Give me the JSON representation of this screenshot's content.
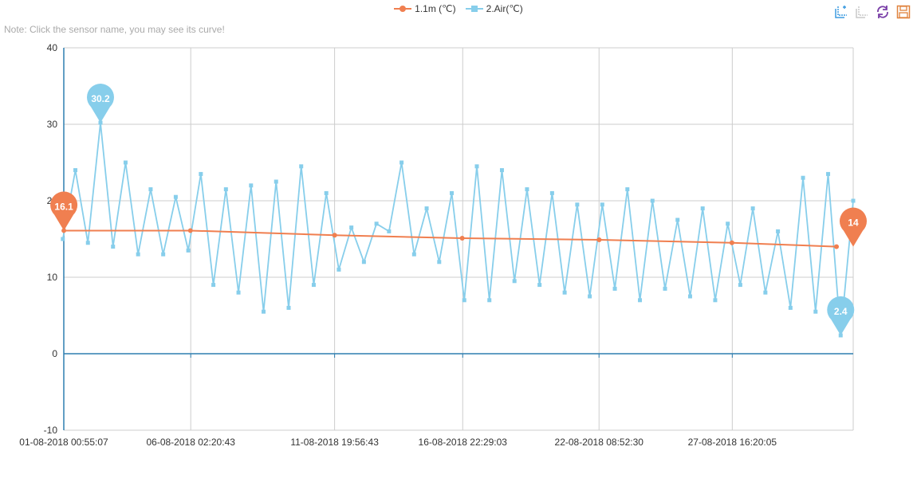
{
  "note": "Note: Click the sensor name, you may see its curve!",
  "toolbox": [
    {
      "name": "zoom-icon",
      "color": "#3d9be0"
    },
    {
      "name": "zoom-reset-icon",
      "color": "#c8c8c8"
    },
    {
      "name": "restore-icon",
      "color": "#7a3fa8"
    },
    {
      "name": "save-image-icon",
      "color": "#e0823d"
    }
  ],
  "chart_data": {
    "type": "line",
    "xlabel": "",
    "ylabel": "",
    "ylim": [
      -10,
      40
    ],
    "yticks": [
      -10,
      0,
      10,
      20,
      30,
      40
    ],
    "xlim": [
      "2018-08-01T00:55:07",
      "2018-09-01T12:00:00"
    ],
    "xticks": [
      "01-08-2018 00:55:07",
      "06-08-2018 02:20:43",
      "11-08-2018 19:56:43",
      "16-08-2018 22:29:03",
      "22-08-2018 08:52:30",
      "27-08-2018 16:20:05"
    ],
    "grid": true,
    "legend_position": "top-center",
    "series": [
      {
        "name": "1.1m (℃)",
        "color": "#f07f50",
        "marker": "circle",
        "x": [
          "2018-08-01T01:00",
          "2018-08-06T02:00",
          "2018-08-11T20:00",
          "2018-08-16T22:00",
          "2018-08-22T09:00",
          "2018-08-27T16:00",
          "2018-08-31T20:00"
        ],
        "values": [
          16.1,
          16.1,
          15.5,
          15.1,
          14.9,
          14.5,
          14.0
        ],
        "markpoints": [
          {
            "label": "16.1",
            "x": "2018-08-01T01:00",
            "value": 16.1
          },
          {
            "label": "14",
            "x": "2018-09-01T12:00",
            "value": 14.0
          }
        ]
      },
      {
        "name": "2.Air(℃)",
        "color": "#87ceeb",
        "marker": "square",
        "x": [
          "2018-08-01T00:00",
          "2018-08-01T12:00",
          "2018-08-02T00:00",
          "2018-08-02T12:00",
          "2018-08-03T00:00",
          "2018-08-03T12:00",
          "2018-08-04T00:00",
          "2018-08-04T12:00",
          "2018-08-05T00:00",
          "2018-08-05T12:00",
          "2018-08-06T00:00",
          "2018-08-06T12:00",
          "2018-08-07T00:00",
          "2018-08-07T12:00",
          "2018-08-08T00:00",
          "2018-08-08T12:00",
          "2018-08-09T00:00",
          "2018-08-09T12:00",
          "2018-08-10T00:00",
          "2018-08-10T12:00",
          "2018-08-11T00:00",
          "2018-08-11T12:00",
          "2018-08-12T00:00",
          "2018-08-12T12:00",
          "2018-08-13T00:00",
          "2018-08-13T12:00",
          "2018-08-14T00:00",
          "2018-08-14T12:00",
          "2018-08-15T00:00",
          "2018-08-15T12:00",
          "2018-08-16T00:00",
          "2018-08-16T12:00",
          "2018-08-17T00:00",
          "2018-08-17T12:00",
          "2018-08-18T00:00",
          "2018-08-18T12:00",
          "2018-08-19T00:00",
          "2018-08-19T12:00",
          "2018-08-20T00:00",
          "2018-08-20T12:00",
          "2018-08-21T00:00",
          "2018-08-21T12:00",
          "2018-08-22T00:00",
          "2018-08-22T12:00",
          "2018-08-23T00:00",
          "2018-08-23T12:00",
          "2018-08-24T00:00",
          "2018-08-24T12:00",
          "2018-08-25T00:00",
          "2018-08-25T12:00",
          "2018-08-26T00:00",
          "2018-08-26T12:00",
          "2018-08-27T00:00",
          "2018-08-27T12:00",
          "2018-08-28T00:00",
          "2018-08-28T12:00",
          "2018-08-29T00:00",
          "2018-08-29T12:00",
          "2018-08-30T00:00",
          "2018-08-30T12:00",
          "2018-08-31T00:00",
          "2018-08-31T12:00",
          "2018-09-01T00:00",
          "2018-09-01T12:00"
        ],
        "values": [
          15,
          24,
          14.5,
          30.2,
          14,
          25,
          13,
          21.5,
          13,
          20.5,
          13.5,
          23.5,
          9,
          21.5,
          8,
          22,
          5.5,
          22.5,
          6,
          24.5,
          9,
          21,
          11,
          16.5,
          12,
          17,
          16,
          25,
          13,
          19,
          12,
          21,
          7,
          24.5,
          7,
          24,
          9.5,
          21.5,
          9,
          21,
          8,
          19.5,
          7.5,
          19.5,
          8.5,
          21.5,
          7,
          20,
          8.5,
          17.5,
          7.5,
          19,
          7,
          17,
          9,
          19,
          8,
          16,
          6,
          23,
          5.5,
          23.5,
          2.4,
          20
        ],
        "markpoints": [
          {
            "label": "30.2",
            "x": "2018-08-02T12:00",
            "value": 30.2
          },
          {
            "label": "2.4",
            "x": "2018-09-01T00:00",
            "value": 2.4
          }
        ]
      }
    ]
  }
}
